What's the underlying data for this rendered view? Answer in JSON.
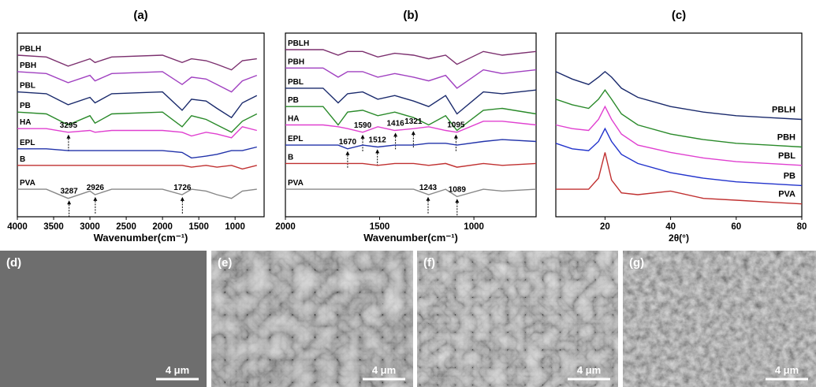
{
  "chart_data": [
    {
      "type": "line",
      "title": "(a)",
      "x_label": "Wavenumber(cm⁻¹)",
      "legend": "left",
      "xlim": [
        4000,
        600
      ],
      "ylim": [
        0,
        100
      ],
      "xticks": [
        4000,
        3500,
        3000,
        2500,
        2000,
        1500,
        1000
      ],
      "x": [
        4000,
        3600,
        3300,
        3000,
        2930,
        2700,
        2000,
        1730,
        1600,
        1400,
        1250,
        1050,
        900,
        700
      ],
      "series": [
        {
          "name": "PBLH",
          "color": "#7b2f6e",
          "values": [
            88,
            87,
            82,
            86,
            84,
            87,
            88,
            84,
            86,
            85,
            83,
            80,
            85,
            86
          ]
        },
        {
          "name": "PBH",
          "color": "#a040c0",
          "values": [
            79,
            78,
            73,
            77,
            74,
            78,
            79,
            72,
            76,
            75,
            72,
            68,
            74,
            77
          ]
        },
        {
          "name": "PBL",
          "color": "#1a2a6c",
          "values": [
            68,
            67,
            61,
            65,
            62,
            67,
            68,
            58,
            64,
            63,
            59,
            54,
            62,
            66
          ]
        },
        {
          "name": "PB",
          "color": "#2a8a2a",
          "values": [
            57,
            56,
            50,
            55,
            51,
            56,
            57,
            49,
            55,
            53,
            50,
            46,
            52,
            56
          ]
        },
        {
          "name": "HA",
          "color": "#e040d0",
          "values": [
            48,
            48,
            46,
            47,
            46,
            47,
            47,
            46,
            44,
            46,
            45,
            43,
            49,
            47
          ],
          "peaks": [
            3295
          ]
        },
        {
          "name": "EPL",
          "color": "#2233aa",
          "values": [
            37,
            37,
            36,
            36,
            36,
            36,
            36,
            35,
            32,
            33,
            34,
            36,
            36,
            38
          ]
        },
        {
          "name": "B",
          "color": "#c03030",
          "values": [
            28,
            28,
            28,
            28,
            28,
            28,
            28,
            28,
            27,
            28,
            27,
            28,
            26,
            28
          ]
        },
        {
          "name": "PVA",
          "color": "#888888",
          "values": [
            15,
            15,
            10,
            14,
            12,
            15,
            15,
            12,
            15,
            14,
            12,
            10,
            14,
            15
          ],
          "peaks": [
            3287,
            2926,
            1726
          ]
        }
      ]
    },
    {
      "type": "line",
      "title": "(b)",
      "x_label": "Wavenumber(cm⁻¹)",
      "legend": "left",
      "xlim": [
        2000,
        670
      ],
      "ylim": [
        0,
        100
      ],
      "xticks": [
        2000,
        1500,
        1000
      ],
      "x": [
        2000,
        1800,
        1720,
        1670,
        1590,
        1510,
        1420,
        1320,
        1240,
        1150,
        1090,
        950,
        850,
        670
      ],
      "series": [
        {
          "name": "PBLH",
          "color": "#7b2f6e",
          "values": [
            91,
            91,
            88,
            90,
            90,
            87,
            89,
            88,
            86,
            88,
            83,
            90,
            88,
            90
          ]
        },
        {
          "name": "PBH",
          "color": "#a040c0",
          "values": [
            81,
            81,
            76,
            79,
            79,
            76,
            78,
            76,
            74,
            77,
            70,
            80,
            78,
            80
          ]
        },
        {
          "name": "PBL",
          "color": "#1a2a6c",
          "values": [
            70,
            70,
            62,
            67,
            68,
            64,
            66,
            63,
            60,
            66,
            56,
            68,
            67,
            69
          ]
        },
        {
          "name": "PB",
          "color": "#2a8a2a",
          "values": [
            60,
            60,
            50,
            57,
            58,
            55,
            57,
            54,
            50,
            55,
            47,
            58,
            59,
            56
          ]
        },
        {
          "name": "HA",
          "color": "#e040d0",
          "values": [
            50,
            50,
            49,
            48,
            46,
            49,
            47,
            48,
            49,
            47,
            46,
            52,
            52,
            50
          ],
          "peaks": [
            1590,
            1416,
            1321,
            1095
          ]
        },
        {
          "name": "EPL",
          "color": "#2233aa",
          "values": [
            39,
            39,
            39,
            37,
            39,
            38,
            39,
            39,
            40,
            40,
            39,
            41,
            42,
            41
          ],
          "peaks": [
            1670,
            1512
          ]
        },
        {
          "name": "B",
          "color": "#c03030",
          "values": [
            29,
            29,
            29,
            29,
            29,
            28,
            29,
            29,
            28,
            29,
            27,
            29,
            28,
            29
          ]
        },
        {
          "name": "PVA",
          "color": "#888888",
          "values": [
            15,
            15,
            15,
            15,
            15,
            15,
            15,
            15,
            12,
            15,
            11,
            15,
            14,
            15
          ],
          "peaks": [
            1243,
            1089
          ]
        }
      ]
    },
    {
      "type": "line",
      "title": "(c)",
      "x_label": "2θ(°)",
      "legend": "right",
      "xlim": [
        5,
        80
      ],
      "ylim": [
        0,
        100
      ],
      "xticks": [
        20,
        40,
        60,
        80
      ],
      "x": [
        5,
        10,
        15,
        18,
        20,
        22,
        25,
        30,
        40,
        50,
        60,
        70,
        80
      ],
      "series": [
        {
          "name": "PBLH",
          "color": "#1a2a6c",
          "values": [
            79,
            75,
            72,
            76,
            79,
            76,
            70,
            65,
            60,
            57,
            55,
            54,
            53
          ]
        },
        {
          "name": "PBH",
          "color": "#2a8a2a",
          "values": [
            64,
            61,
            59,
            64,
            69,
            64,
            56,
            50,
            45,
            42,
            40,
            39,
            38
          ]
        },
        {
          "name": "PBL",
          "color": "#e040d0",
          "values": [
            50,
            48,
            47,
            53,
            60,
            53,
            45,
            39,
            35,
            32,
            30,
            29,
            28
          ]
        },
        {
          "name": "PB",
          "color": "#2233cc",
          "values": [
            40,
            37,
            36,
            41,
            48,
            41,
            34,
            29,
            24,
            21,
            19,
            18,
            17
          ]
        },
        {
          "name": "PVA",
          "color": "#c03030",
          "values": [
            15,
            15,
            15,
            21,
            35,
            20,
            13,
            12,
            14,
            10,
            9,
            8,
            7
          ]
        }
      ]
    }
  ],
  "images": [
    {
      "label": "(d)",
      "scale_bar": "4 μm"
    },
    {
      "label": "(e)",
      "scale_bar": "4 μm"
    },
    {
      "label": "(f)",
      "scale_bar": "4 μm"
    },
    {
      "label": "(g)",
      "scale_bar": "4 μm"
    }
  ]
}
